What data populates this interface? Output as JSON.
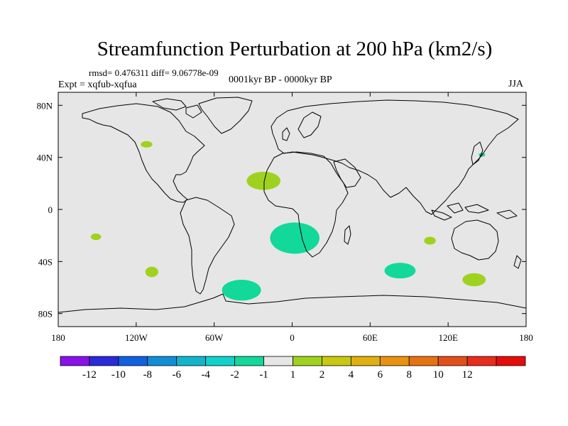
{
  "title": "Streamfunction Perturbation at 200 hPa (km2/s)",
  "stats": "rmsd= 0.476311  diff= 9.06778e-09",
  "experiment": "Expt = xqfub-xqfua",
  "period": "0001kyr BP - 0000kyr BP",
  "season": "JJA",
  "map": {
    "background_color": "#e6e6e6",
    "lat_labels": [
      "80N",
      "40N",
      "0",
      "40S",
      "80S"
    ],
    "lat_values": [
      80,
      40,
      0,
      -40,
      -80
    ],
    "lon_labels": [
      "180",
      "120W",
      "60W",
      "0",
      "60E",
      "120E",
      "180"
    ],
    "lon_values": [
      -180,
      -120,
      -60,
      0,
      60,
      120,
      180
    ],
    "anomalies": [
      {
        "lon": -112,
        "lat": 50,
        "rlon": 4.5,
        "rlat": 2.5,
        "color": "#9fd21e",
        "level": "1 to 2"
      },
      {
        "lon": -22,
        "lat": 22,
        "rlon": 13,
        "rlat": 7,
        "color": "#9fd21e",
        "level": "1 to 2"
      },
      {
        "lon": -151,
        "lat": -21,
        "rlon": 4,
        "rlat": 2.5,
        "color": "#9fd21e",
        "level": "1 to 2"
      },
      {
        "lon": -108,
        "lat": -48,
        "rlon": 5,
        "rlat": 4,
        "color": "#9fd21e",
        "level": "1 to 2"
      },
      {
        "lon": 106,
        "lat": -24,
        "rlon": 4.5,
        "rlat": 3,
        "color": "#9fd21e",
        "level": "1 to 2"
      },
      {
        "lon": 140,
        "lat": -54,
        "rlon": 9,
        "rlat": 5,
        "color": "#9fd21e",
        "level": "1 to 2"
      },
      {
        "lon": 2,
        "lat": -22,
        "rlon": 19,
        "rlat": 12,
        "color": "#12d89a",
        "level": "-2 to -1"
      },
      {
        "lon": -39,
        "lat": -62,
        "rlon": 15,
        "rlat": 8,
        "color": "#12d89a",
        "level": "-2 to -1"
      },
      {
        "lon": 83,
        "lat": -47,
        "rlon": 12,
        "rlat": 6,
        "color": "#12d89a",
        "level": "-2 to -1"
      },
      {
        "lon": 146,
        "lat": 42,
        "rlon": 2.5,
        "rlat": 1.5,
        "color": "#12d89a",
        "level": "-2 to -1"
      }
    ]
  },
  "colorbar": {
    "colors": [
      "#8a12e8",
      "#2a2ad8",
      "#1060e0",
      "#128ed6",
      "#12b6cc",
      "#12d2cc",
      "#12d89a",
      "#e6e6e6",
      "#9fd21e",
      "#c8c812",
      "#e0b00e",
      "#e89210",
      "#e67312",
      "#e2501a",
      "#e82c1e",
      "#e60c0c"
    ],
    "labels": [
      "-12",
      "-10",
      "-8",
      "-6",
      "-4",
      "-2",
      "-1",
      "1",
      "2",
      "4",
      "6",
      "8",
      "10",
      "12"
    ]
  }
}
